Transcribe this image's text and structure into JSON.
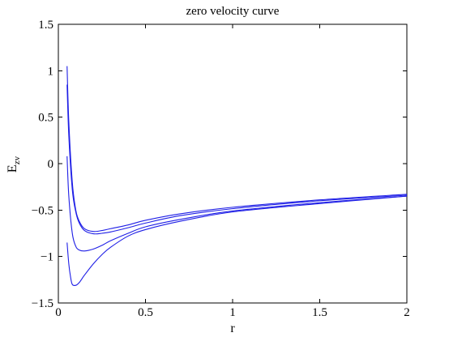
{
  "chart_data": {
    "type": "line",
    "title": "zero velocity curve",
    "xlabel": "r",
    "ylabel_main": "E",
    "ylabel_subscript": "zv",
    "xlim": [
      0,
      2
    ],
    "ylim": [
      -1.5,
      1.5
    ],
    "xticks": [
      0,
      0.5,
      1,
      1.5,
      2
    ],
    "xtick_labels": [
      "0",
      "0.5",
      "1",
      "1.5",
      "2"
    ],
    "yticks": [
      -1.5,
      -1,
      -0.5,
      0,
      0.5,
      1,
      1.5
    ],
    "ytick_labels": [
      "−1.5",
      "−1",
      "−0.5",
      "0",
      "0.5",
      "1",
      "1.5"
    ],
    "grid": false,
    "line_color": "#1f1fe6",
    "series": [
      {
        "x": [
          0.05,
          0.06,
          0.08,
          0.1,
          0.12,
          0.15,
          0.2,
          0.25,
          0.3,
          0.4,
          0.5,
          0.7,
          1.0,
          1.5,
          2.0
        ],
        "y": [
          1.05,
          0.45,
          -0.2,
          -0.5,
          -0.62,
          -0.7,
          -0.73,
          -0.72,
          -0.7,
          -0.66,
          -0.61,
          -0.54,
          -0.47,
          -0.39,
          -0.33
        ]
      },
      {
        "x": [
          0.05,
          0.06,
          0.08,
          0.1,
          0.12,
          0.15,
          0.2,
          0.25,
          0.3,
          0.4,
          0.5,
          0.7,
          1.0,
          1.5,
          2.0
        ],
        "y": [
          0.85,
          0.3,
          -0.28,
          -0.52,
          -0.64,
          -0.72,
          -0.755,
          -0.75,
          -0.735,
          -0.69,
          -0.64,
          -0.56,
          -0.485,
          -0.4,
          -0.34
        ]
      },
      {
        "x": [
          0.05,
          0.06,
          0.08,
          0.1,
          0.12,
          0.15,
          0.2,
          0.25,
          0.3,
          0.4,
          0.5,
          0.7,
          1.0,
          1.5,
          2.0
        ],
        "y": [
          0.08,
          -0.35,
          -0.75,
          -0.89,
          -0.93,
          -0.94,
          -0.92,
          -0.88,
          -0.83,
          -0.75,
          -0.68,
          -0.6,
          -0.51,
          -0.42,
          -0.35
        ]
      },
      {
        "x": [
          0.05,
          0.06,
          0.07,
          0.08,
          0.1,
          0.12,
          0.15,
          0.2,
          0.25,
          0.3,
          0.4,
          0.5,
          0.7,
          1.0,
          1.5,
          2.0
        ],
        "y": [
          -0.85,
          -1.08,
          -1.22,
          -1.3,
          -1.31,
          -1.28,
          -1.2,
          -1.08,
          -0.98,
          -0.9,
          -0.78,
          -0.71,
          -0.62,
          -0.52,
          -0.43,
          -0.35
        ]
      }
    ]
  }
}
